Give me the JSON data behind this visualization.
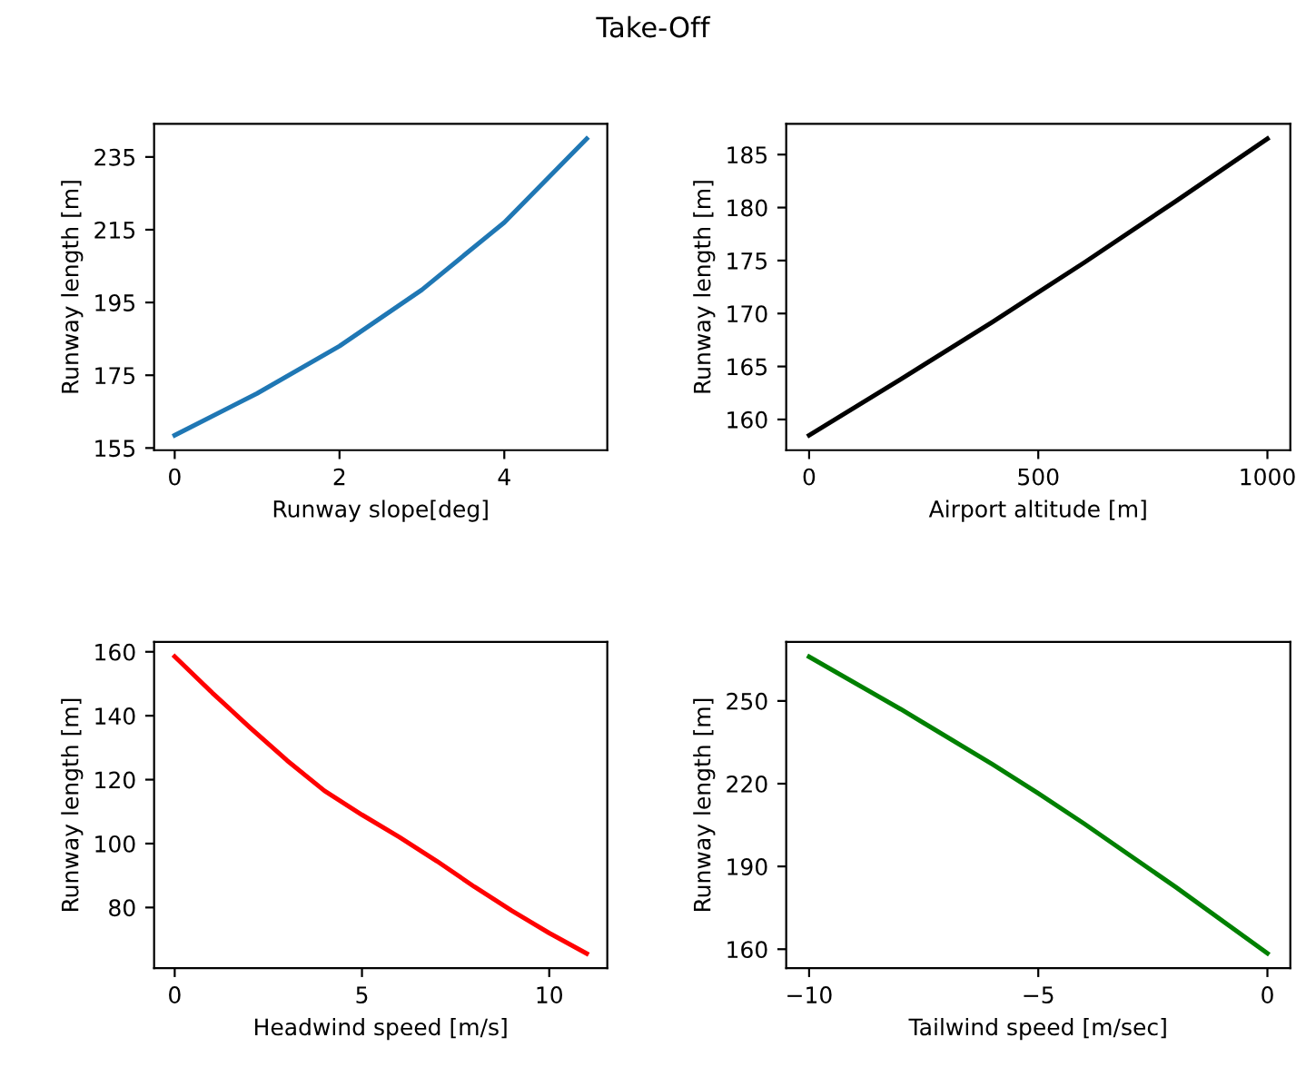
{
  "chart_data": [
    {
      "type": "line",
      "title": "Take-Off",
      "xlabel": "Runway slope[deg]",
      "ylabel": "Runway length [m]",
      "x": [
        0,
        1,
        2,
        3,
        4,
        5
      ],
      "series": [
        {
          "color": "#1f77b4",
          "values": [
            158.5,
            170,
            183,
            198.5,
            217,
            240
          ]
        }
      ],
      "xlim": [
        -0.25,
        5.25
      ],
      "xticks": [
        0,
        2,
        4
      ],
      "ylim": [
        154.4,
        244.1
      ],
      "yticks": [
        155,
        175,
        195,
        215,
        235
      ]
    },
    {
      "type": "line",
      "xlabel": "Airport altitude [m]",
      "ylabel": "Runway length [m]",
      "x": [
        0,
        200,
        400,
        500,
        600,
        800,
        1000
      ],
      "series": [
        {
          "color": "#000000",
          "values": [
            158.5,
            163.8,
            169.2,
            172,
            174.8,
            180.6,
            186.5
          ]
        }
      ],
      "xlim": [
        -50,
        1050
      ],
      "xticks": [
        0,
        500,
        1000
      ],
      "ylim": [
        157.1,
        187.9
      ],
      "yticks": [
        160,
        165,
        170,
        175,
        180,
        185
      ]
    },
    {
      "type": "line",
      "xlabel": "Headwind speed [m/s]",
      "ylabel": "Runway length [m]",
      "x": [
        0,
        1,
        2,
        3,
        4,
        5,
        6,
        7,
        8,
        9,
        10,
        11
      ],
      "series": [
        {
          "color": "#ff0000",
          "values": [
            158.5,
            147.2,
            136.4,
            126,
            116.5,
            109,
            102,
            94.5,
            86.5,
            79,
            72,
            65.6
          ]
        }
      ],
      "xlim": [
        -0.55,
        11.55
      ],
      "xticks": [
        0,
        5,
        10
      ],
      "ylim": [
        61,
        163.1
      ],
      "yticks": [
        80,
        100,
        120,
        140,
        160
      ]
    },
    {
      "type": "line",
      "xlabel": "Tailwind speed [m/sec]",
      "ylabel": "Runway length [m]",
      "x": [
        -10,
        -8,
        -6,
        -5,
        -4,
        -2,
        0
      ],
      "series": [
        {
          "color": "#008000",
          "values": [
            266,
            247,
            227,
            216.5,
            205.5,
            182.5,
            158.5
          ]
        }
      ],
      "xlim": [
        -10.5,
        0.5
      ],
      "xticks": [
        {
          "value": -10,
          "label": "−10"
        },
        {
          "value": -5,
          "label": "−5"
        },
        0
      ],
      "ylim": [
        153.1,
        271.4
      ],
      "yticks": [
        160,
        190,
        220,
        250
      ]
    }
  ]
}
